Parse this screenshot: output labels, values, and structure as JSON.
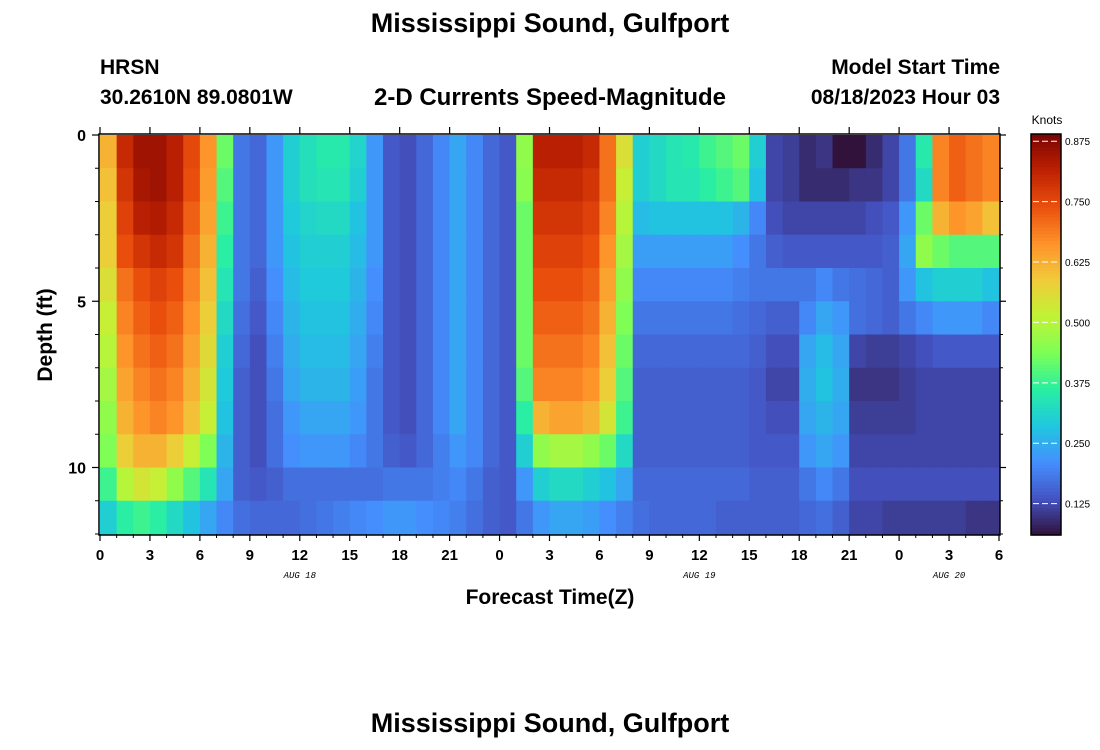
{
  "header": {
    "title": "Mississippi Sound, Gulfport",
    "station": "HRSN",
    "coordinates": "30.2610N  89.0801W",
    "variable_title": "2-D Currents Speed-Magnitude",
    "model_start_label": "Model Start Time",
    "model_start_value": "08/18/2023 Hour 03",
    "repeat_title": "Mississippi Sound, Gulfport"
  },
  "colors": {
    "colormap": [
      "#30123b",
      "#4454c4",
      "#4490fe",
      "#1fc8de",
      "#29efa2",
      "#7dff56",
      "#c1f334",
      "#f1ca3a",
      "#fe922a",
      "#ea4f0d",
      "#be2102",
      "#7a0403"
    ]
  },
  "chart_data": {
    "type": "heatmap",
    "xlabel": "Forecast Time(Z)",
    "ylabel": "Depth (ft)",
    "colorbar_label": "Knots",
    "xlim": [
      0,
      54
    ],
    "ylim": [
      0,
      12
    ],
    "clim": [
      0.06,
      0.89
    ],
    "x_ticks": [
      0,
      3,
      6,
      9,
      12,
      15,
      18,
      21,
      24,
      27,
      30,
      33,
      36,
      39,
      42,
      45,
      48,
      51,
      54
    ],
    "x_tick_labels": [
      "0",
      "3",
      "6",
      "9",
      "12",
      "15",
      "18",
      "21",
      "0",
      "3",
      "6",
      "9",
      "12",
      "15",
      "18",
      "21",
      "0",
      "3",
      "6"
    ],
    "y_ticks": [
      0,
      5,
      10
    ],
    "y_tick_labels": [
      "0",
      "5",
      "10"
    ],
    "date_labels": [
      {
        "text": "AUG 18",
        "x": 12
      },
      {
        "text": "AUG 19",
        "x": 36
      },
      {
        "text": "AUG 20",
        "x": 51
      }
    ],
    "colorbar_ticks": [
      0.875,
      0.75,
      0.625,
      0.5,
      0.375,
      0.25,
      0.125
    ],
    "colorbar_tick_labels": [
      "0.875",
      "0.750",
      "0.625",
      "0.500",
      "0.375",
      "0.250",
      "0.125"
    ],
    "depth_levels_ft": [
      0.5,
      1.5,
      2.5,
      3.5,
      4.5,
      5.5,
      6.5,
      7.5,
      8.5,
      9.5,
      10.5,
      11.5
    ],
    "hours": [
      0,
      1,
      2,
      3,
      4,
      5,
      6,
      7,
      8,
      9,
      10,
      11,
      12,
      13,
      14,
      15,
      16,
      17,
      18,
      19,
      20,
      21,
      22,
      23,
      24,
      25,
      26,
      27,
      28,
      29,
      30,
      31,
      32,
      33,
      34,
      35,
      36,
      37,
      38,
      39,
      40,
      41,
      42,
      43,
      44,
      45,
      46,
      47,
      48,
      49,
      50,
      51,
      52,
      53
    ],
    "speed_knots": [
      [
        0.62,
        0.8,
        0.85,
        0.85,
        0.82,
        0.75,
        0.66,
        0.42,
        0.18,
        0.16,
        0.22,
        0.3,
        0.33,
        0.35,
        0.35,
        0.31,
        0.22,
        0.14,
        0.13,
        0.16,
        0.2,
        0.24,
        0.2,
        0.16,
        0.14,
        0.46,
        0.82,
        0.82,
        0.82,
        0.8,
        0.7,
        0.55,
        0.3,
        0.32,
        0.34,
        0.35,
        0.38,
        0.4,
        0.42,
        0.3,
        0.12,
        0.11,
        0.09,
        0.1,
        0.06,
        0.05,
        0.09,
        0.12,
        0.18,
        0.35,
        0.68,
        0.72,
        0.7,
        0.68
      ],
      [
        0.6,
        0.78,
        0.84,
        0.85,
        0.82,
        0.74,
        0.65,
        0.4,
        0.18,
        0.16,
        0.22,
        0.3,
        0.33,
        0.34,
        0.34,
        0.3,
        0.22,
        0.14,
        0.13,
        0.16,
        0.2,
        0.24,
        0.2,
        0.16,
        0.14,
        0.45,
        0.8,
        0.8,
        0.8,
        0.78,
        0.7,
        0.52,
        0.3,
        0.32,
        0.34,
        0.34,
        0.36,
        0.38,
        0.4,
        0.28,
        0.12,
        0.11,
        0.09,
        0.09,
        0.09,
        0.1,
        0.1,
        0.12,
        0.18,
        0.32,
        0.68,
        0.72,
        0.7,
        0.68
      ],
      [
        0.58,
        0.76,
        0.82,
        0.83,
        0.8,
        0.72,
        0.64,
        0.38,
        0.18,
        0.16,
        0.22,
        0.29,
        0.31,
        0.32,
        0.32,
        0.28,
        0.22,
        0.14,
        0.13,
        0.16,
        0.2,
        0.24,
        0.2,
        0.16,
        0.14,
        0.42,
        0.78,
        0.78,
        0.78,
        0.76,
        0.68,
        0.5,
        0.27,
        0.28,
        0.28,
        0.28,
        0.28,
        0.28,
        0.26,
        0.2,
        0.13,
        0.12,
        0.12,
        0.12,
        0.12,
        0.12,
        0.13,
        0.14,
        0.22,
        0.42,
        0.62,
        0.66,
        0.64,
        0.6
      ],
      [
        0.58,
        0.74,
        0.78,
        0.8,
        0.78,
        0.7,
        0.62,
        0.36,
        0.18,
        0.16,
        0.22,
        0.28,
        0.3,
        0.3,
        0.3,
        0.27,
        0.22,
        0.14,
        0.13,
        0.16,
        0.2,
        0.24,
        0.2,
        0.16,
        0.14,
        0.42,
        0.76,
        0.76,
        0.76,
        0.74,
        0.66,
        0.48,
        0.23,
        0.23,
        0.23,
        0.23,
        0.23,
        0.23,
        0.21,
        0.18,
        0.15,
        0.14,
        0.14,
        0.14,
        0.14,
        0.14,
        0.14,
        0.15,
        0.24,
        0.46,
        0.42,
        0.4,
        0.4,
        0.4
      ],
      [
        0.55,
        0.7,
        0.74,
        0.76,
        0.74,
        0.68,
        0.6,
        0.34,
        0.18,
        0.15,
        0.21,
        0.27,
        0.29,
        0.29,
        0.29,
        0.26,
        0.21,
        0.14,
        0.13,
        0.16,
        0.2,
        0.24,
        0.2,
        0.16,
        0.14,
        0.42,
        0.74,
        0.74,
        0.74,
        0.72,
        0.64,
        0.46,
        0.2,
        0.2,
        0.2,
        0.2,
        0.2,
        0.2,
        0.19,
        0.18,
        0.18,
        0.18,
        0.18,
        0.2,
        0.18,
        0.17,
        0.16,
        0.15,
        0.22,
        0.28,
        0.3,
        0.3,
        0.3,
        0.28
      ],
      [
        0.52,
        0.68,
        0.72,
        0.74,
        0.72,
        0.66,
        0.58,
        0.32,
        0.17,
        0.14,
        0.2,
        0.26,
        0.28,
        0.28,
        0.28,
        0.25,
        0.2,
        0.14,
        0.13,
        0.16,
        0.2,
        0.24,
        0.2,
        0.16,
        0.14,
        0.42,
        0.72,
        0.72,
        0.72,
        0.7,
        0.62,
        0.44,
        0.18,
        0.18,
        0.18,
        0.18,
        0.18,
        0.18,
        0.17,
        0.16,
        0.15,
        0.15,
        0.2,
        0.24,
        0.22,
        0.17,
        0.16,
        0.15,
        0.18,
        0.2,
        0.22,
        0.22,
        0.22,
        0.2
      ],
      [
        0.5,
        0.66,
        0.7,
        0.72,
        0.7,
        0.64,
        0.56,
        0.3,
        0.16,
        0.13,
        0.19,
        0.25,
        0.27,
        0.27,
        0.27,
        0.24,
        0.19,
        0.14,
        0.13,
        0.16,
        0.2,
        0.24,
        0.2,
        0.16,
        0.14,
        0.42,
        0.7,
        0.7,
        0.7,
        0.68,
        0.6,
        0.42,
        0.16,
        0.16,
        0.16,
        0.16,
        0.16,
        0.16,
        0.16,
        0.15,
        0.13,
        0.13,
        0.24,
        0.27,
        0.24,
        0.12,
        0.11,
        0.11,
        0.12,
        0.13,
        0.14,
        0.14,
        0.14,
        0.14
      ],
      [
        0.48,
        0.64,
        0.68,
        0.7,
        0.68,
        0.62,
        0.54,
        0.29,
        0.15,
        0.13,
        0.18,
        0.24,
        0.26,
        0.26,
        0.26,
        0.23,
        0.18,
        0.14,
        0.13,
        0.16,
        0.2,
        0.24,
        0.2,
        0.16,
        0.14,
        0.4,
        0.68,
        0.68,
        0.68,
        0.66,
        0.58,
        0.4,
        0.15,
        0.15,
        0.15,
        0.15,
        0.15,
        0.15,
        0.15,
        0.14,
        0.12,
        0.12,
        0.25,
        0.28,
        0.25,
        0.1,
        0.1,
        0.1,
        0.11,
        0.12,
        0.12,
        0.12,
        0.12,
        0.12
      ],
      [
        0.46,
        0.62,
        0.66,
        0.68,
        0.66,
        0.6,
        0.52,
        0.28,
        0.15,
        0.13,
        0.17,
        0.22,
        0.24,
        0.24,
        0.24,
        0.22,
        0.18,
        0.14,
        0.13,
        0.16,
        0.2,
        0.24,
        0.2,
        0.16,
        0.14,
        0.36,
        0.62,
        0.64,
        0.64,
        0.62,
        0.54,
        0.38,
        0.15,
        0.15,
        0.15,
        0.15,
        0.15,
        0.15,
        0.15,
        0.14,
        0.13,
        0.13,
        0.24,
        0.26,
        0.24,
        0.11,
        0.11,
        0.11,
        0.11,
        0.12,
        0.12,
        0.12,
        0.12,
        0.12
      ],
      [
        0.44,
        0.58,
        0.62,
        0.62,
        0.58,
        0.52,
        0.44,
        0.26,
        0.15,
        0.13,
        0.17,
        0.21,
        0.22,
        0.22,
        0.22,
        0.2,
        0.18,
        0.15,
        0.14,
        0.16,
        0.19,
        0.22,
        0.2,
        0.16,
        0.14,
        0.3,
        0.46,
        0.48,
        0.48,
        0.46,
        0.42,
        0.32,
        0.15,
        0.15,
        0.15,
        0.15,
        0.15,
        0.15,
        0.15,
        0.14,
        0.14,
        0.14,
        0.22,
        0.24,
        0.22,
        0.12,
        0.12,
        0.12,
        0.12,
        0.12,
        0.12,
        0.12,
        0.12,
        0.12
      ],
      [
        0.38,
        0.5,
        0.54,
        0.52,
        0.46,
        0.4,
        0.34,
        0.24,
        0.15,
        0.14,
        0.15,
        0.17,
        0.17,
        0.17,
        0.17,
        0.17,
        0.17,
        0.18,
        0.18,
        0.18,
        0.19,
        0.2,
        0.18,
        0.15,
        0.14,
        0.22,
        0.3,
        0.32,
        0.32,
        0.3,
        0.28,
        0.24,
        0.16,
        0.16,
        0.16,
        0.16,
        0.16,
        0.16,
        0.16,
        0.15,
        0.15,
        0.15,
        0.18,
        0.2,
        0.18,
        0.13,
        0.13,
        0.13,
        0.13,
        0.13,
        0.13,
        0.13,
        0.13,
        0.13
      ],
      [
        0.3,
        0.36,
        0.38,
        0.36,
        0.32,
        0.28,
        0.24,
        0.2,
        0.17,
        0.16,
        0.16,
        0.16,
        0.17,
        0.18,
        0.19,
        0.2,
        0.21,
        0.22,
        0.22,
        0.21,
        0.2,
        0.19,
        0.17,
        0.15,
        0.14,
        0.18,
        0.22,
        0.24,
        0.24,
        0.23,
        0.21,
        0.19,
        0.17,
        0.16,
        0.16,
        0.16,
        0.16,
        0.15,
        0.15,
        0.15,
        0.15,
        0.15,
        0.16,
        0.17,
        0.15,
        0.12,
        0.12,
        0.11,
        0.11,
        0.11,
        0.11,
        0.11,
        0.1,
        0.1
      ]
    ]
  }
}
